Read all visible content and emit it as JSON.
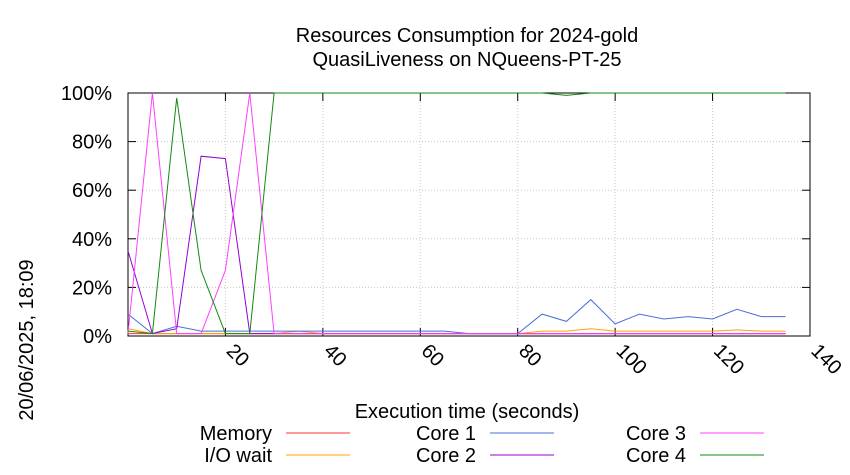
{
  "side_label": "20/06/2025, 18:09",
  "chart_data": {
    "type": "line",
    "title": "Resources Consumption for 2024-gold",
    "subtitle": "QuasiLiveness on NQueens-PT-25",
    "xlabel": "Execution time (seconds)",
    "ylabel": "",
    "xlim": [
      0,
      140
    ],
    "ylim": [
      0,
      100
    ],
    "x_ticks": [
      20,
      40,
      60,
      80,
      100,
      120,
      140
    ],
    "y_ticks": [
      0,
      20,
      40,
      60,
      80,
      100
    ],
    "y_tick_labels": [
      "0%",
      "20%",
      "40%",
      "60%",
      "80%",
      "100%"
    ],
    "grid": true,
    "legend_position": "bottom",
    "series": [
      {
        "name": "Memory",
        "color": "#ff3030",
        "points": [
          [
            0,
            1
          ],
          [
            5,
            1
          ],
          [
            10,
            1
          ],
          [
            15,
            1
          ],
          [
            20,
            1
          ],
          [
            25,
            1
          ],
          [
            30,
            1
          ],
          [
            35,
            1
          ],
          [
            40,
            1
          ],
          [
            45,
            1
          ],
          [
            50,
            1
          ],
          [
            55,
            1
          ],
          [
            60,
            1
          ],
          [
            65,
            1
          ],
          [
            70,
            1
          ],
          [
            75,
            1
          ],
          [
            80,
            1
          ],
          [
            85,
            1
          ],
          [
            90,
            1
          ],
          [
            95,
            1
          ],
          [
            100,
            1
          ],
          [
            105,
            1
          ],
          [
            110,
            1
          ],
          [
            115,
            1
          ],
          [
            120,
            1
          ],
          [
            125,
            1
          ],
          [
            130,
            1
          ],
          [
            135,
            1
          ]
        ]
      },
      {
        "name": "I/O wait",
        "color": "#ffa500",
        "points": [
          [
            0,
            3
          ],
          [
            5,
            1
          ],
          [
            10,
            1
          ],
          [
            15,
            1
          ],
          [
            20,
            1
          ],
          [
            25,
            1
          ],
          [
            30,
            1
          ],
          [
            35,
            2
          ],
          [
            40,
            1
          ],
          [
            45,
            1
          ],
          [
            50,
            1
          ],
          [
            55,
            1
          ],
          [
            60,
            1
          ],
          [
            65,
            1
          ],
          [
            70,
            1
          ],
          [
            75,
            1
          ],
          [
            80,
            1
          ],
          [
            85,
            2
          ],
          [
            90,
            2
          ],
          [
            95,
            3
          ],
          [
            100,
            2
          ],
          [
            105,
            2
          ],
          [
            110,
            2
          ],
          [
            115,
            2
          ],
          [
            120,
            2
          ],
          [
            125,
            2.5
          ],
          [
            130,
            2
          ],
          [
            135,
            2
          ]
        ]
      },
      {
        "name": "Core 1",
        "color": "#4a6fd8",
        "points": [
          [
            0,
            9
          ],
          [
            5,
            1
          ],
          [
            10,
            4
          ],
          [
            15,
            2
          ],
          [
            20,
            2
          ],
          [
            25,
            2
          ],
          [
            30,
            2
          ],
          [
            35,
            2
          ],
          [
            40,
            2
          ],
          [
            45,
            2
          ],
          [
            50,
            2
          ],
          [
            55,
            2
          ],
          [
            60,
            2
          ],
          [
            65,
            2
          ],
          [
            70,
            1
          ],
          [
            75,
            1
          ],
          [
            80,
            1
          ],
          [
            85,
            9
          ],
          [
            90,
            6
          ],
          [
            95,
            15
          ],
          [
            100,
            5
          ],
          [
            105,
            9
          ],
          [
            110,
            7
          ],
          [
            115,
            8
          ],
          [
            120,
            7
          ],
          [
            125,
            11
          ],
          [
            130,
            8
          ],
          [
            135,
            8
          ]
        ]
      },
      {
        "name": "Core 2",
        "color": "#9400d3",
        "points": [
          [
            0,
            35
          ],
          [
            5,
            1
          ],
          [
            10,
            3
          ],
          [
            15,
            74
          ],
          [
            20,
            73
          ],
          [
            25,
            1
          ],
          [
            30,
            1
          ],
          [
            35,
            1
          ],
          [
            40,
            1
          ],
          [
            45,
            1
          ],
          [
            50,
            1
          ],
          [
            55,
            1
          ],
          [
            60,
            1
          ],
          [
            65,
            1
          ],
          [
            70,
            1
          ],
          [
            75,
            1
          ],
          [
            80,
            1
          ],
          [
            85,
            1
          ],
          [
            90,
            1
          ],
          [
            95,
            1
          ],
          [
            100,
            1
          ],
          [
            105,
            1
          ],
          [
            110,
            1
          ],
          [
            115,
            1
          ],
          [
            120,
            1
          ],
          [
            125,
            1
          ],
          [
            130,
            1
          ],
          [
            135,
            1
          ]
        ]
      },
      {
        "name": "Core 3",
        "color": "#ff40ff",
        "points": [
          [
            0,
            1
          ],
          [
            5,
            100
          ],
          [
            10,
            1
          ],
          [
            15,
            1
          ],
          [
            20,
            27
          ],
          [
            25,
            100
          ],
          [
            30,
            1
          ],
          [
            35,
            1
          ],
          [
            40,
            1
          ],
          [
            45,
            1
          ],
          [
            50,
            1
          ],
          [
            55,
            1
          ],
          [
            60,
            1
          ],
          [
            65,
            1
          ],
          [
            70,
            1
          ],
          [
            75,
            1
          ],
          [
            80,
            1
          ],
          [
            85,
            1
          ],
          [
            90,
            1
          ],
          [
            95,
            1
          ],
          [
            100,
            1
          ],
          [
            105,
            1
          ],
          [
            110,
            1
          ],
          [
            115,
            1
          ],
          [
            120,
            1
          ],
          [
            125,
            1
          ],
          [
            130,
            1
          ],
          [
            135,
            1
          ]
        ]
      },
      {
        "name": "Core 4",
        "color": "#138a13",
        "points": [
          [
            0,
            2
          ],
          [
            5,
            1
          ],
          [
            10,
            98
          ],
          [
            15,
            27
          ],
          [
            20,
            1
          ],
          [
            25,
            1
          ],
          [
            30,
            100
          ],
          [
            35,
            100
          ],
          [
            40,
            100
          ],
          [
            45,
            100
          ],
          [
            50,
            100
          ],
          [
            55,
            100
          ],
          [
            60,
            100
          ],
          [
            65,
            100
          ],
          [
            70,
            100
          ],
          [
            75,
            100
          ],
          [
            80,
            100
          ],
          [
            85,
            100
          ],
          [
            90,
            99
          ],
          [
            95,
            100
          ],
          [
            100,
            100
          ],
          [
            105,
            100
          ],
          [
            110,
            100
          ],
          [
            115,
            100
          ],
          [
            120,
            100
          ],
          [
            125,
            100
          ],
          [
            130,
            100
          ],
          [
            135,
            100
          ]
        ]
      }
    ]
  }
}
